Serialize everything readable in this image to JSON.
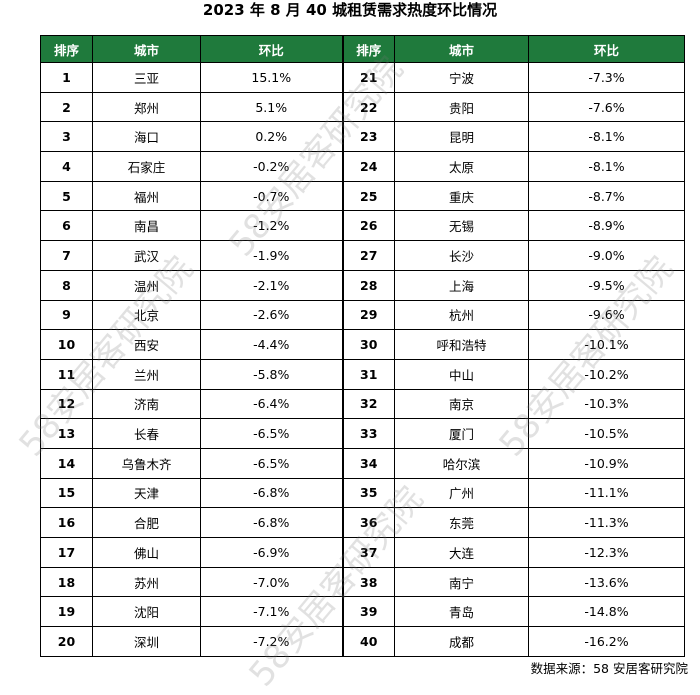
{
  "title": "2023 年 8 月 40 城租赁需求热度环比情况",
  "table": {
    "header": [
      "排序",
      "城市",
      "环比",
      "排序",
      "城市",
      "环比"
    ],
    "rows": [
      [
        1,
        "三亚",
        "15.1%",
        21,
        "宁波",
        "-7.3%"
      ],
      [
        2,
        "郑州",
        "5.1%",
        22,
        "贵阳",
        "-7.6%"
      ],
      [
        3,
        "海口",
        "0.2%",
        23,
        "昆明",
        "-8.1%"
      ],
      [
        4,
        "石家庄",
        "-0.2%",
        24,
        "太原",
        "-8.1%"
      ],
      [
        5,
        "福州",
        "-0.7%",
        25,
        "重庆",
        "-8.7%"
      ],
      [
        6,
        "南昌",
        "-1.2%",
        26,
        "无锡",
        "-8.9%"
      ],
      [
        7,
        "武汉",
        "-1.9%",
        27,
        "长沙",
        "-9.0%"
      ],
      [
        8,
        "温州",
        "-2.1%",
        28,
        "上海",
        "-9.5%"
      ],
      [
        9,
        "北京",
        "-2.6%",
        29,
        "杭州",
        "-9.6%"
      ],
      [
        10,
        "西安",
        "-4.4%",
        30,
        "呼和浩特",
        "-10.1%"
      ],
      [
        11,
        "兰州",
        "-5.8%",
        31,
        "中山",
        "-10.2%"
      ],
      [
        12,
        "济南",
        "-6.4%",
        32,
        "南京",
        "-10.3%"
      ],
      [
        13,
        "长春",
        "-6.5%",
        33,
        "厦门",
        "-10.5%"
      ],
      [
        14,
        "乌鲁木齐",
        "-6.5%",
        34,
        "哈尔滨",
        "-10.9%"
      ],
      [
        15,
        "天津",
        "-6.8%",
        35,
        "广州",
        "-11.1%"
      ],
      [
        16,
        "合肥",
        "-6.8%",
        36,
        "东莞",
        "-11.3%"
      ],
      [
        17,
        "佛山",
        "-6.9%",
        37,
        "大连",
        "-12.3%"
      ],
      [
        18,
        "苏州",
        "-7.0%",
        38,
        "南宁",
        "-13.6%"
      ],
      [
        19,
        "沈阳",
        "-7.1%",
        39,
        "青岛",
        "-14.8%"
      ],
      [
        20,
        "深圳",
        "-7.2%",
        40,
        "成都",
        "-16.2%"
      ]
    ]
  },
  "source": "数据来源：58 安居客研究院",
  "watermark": "58安居客研究院"
}
